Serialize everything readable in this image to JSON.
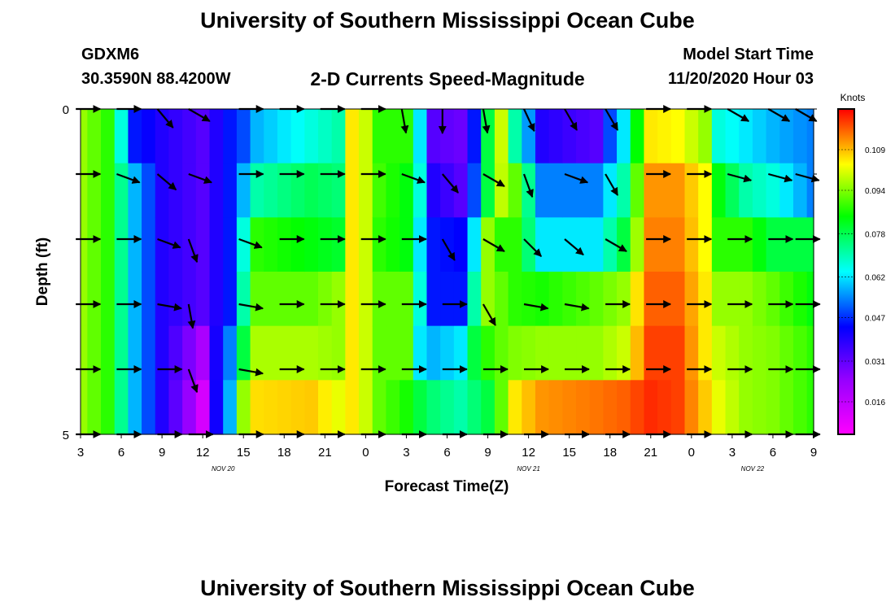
{
  "header": {
    "title": "University of Southern Mississippi Ocean Cube",
    "station": "GDXM6",
    "coordinates": "30.3590N 88.4200W",
    "subtitle": "2-D Currents Speed-Magnitude",
    "model_start_label": "Model Start Time",
    "model_start_value": "11/20/2020 Hour 03"
  },
  "footer": {
    "title": "University of Southern Mississippi Ocean Cube"
  },
  "chart_data": {
    "type": "heatmap",
    "title": "2-D Currents Speed-Magnitude",
    "xlabel": "Forecast Time(Z)",
    "ylabel": "Depth (ft)",
    "x_ticks": [
      "3",
      "6",
      "9",
      "12",
      "15",
      "18",
      "21",
      "0",
      "3",
      "6",
      "9",
      "12",
      "15",
      "18",
      "21",
      "0",
      "3",
      "6",
      "9"
    ],
    "x_range_hours": [
      3,
      57
    ],
    "day_labels": [
      {
        "label": "NOV  20",
        "hour": 13.5
      },
      {
        "label": "NOV  21",
        "hour": 36
      },
      {
        "label": "NOV  22",
        "hour": 52.5
      }
    ],
    "y_ticks": [
      "0",
      "",
      "",
      "",
      "",
      "5"
    ],
    "y_range": [
      0,
      5
    ],
    "colorbar": {
      "title": "Knots",
      "range": [
        0.004,
        0.124
      ],
      "labels": [
        "0.109",
        "0.094",
        "0.078",
        "0.062",
        "0.047",
        "0.031",
        "0.016"
      ],
      "label_values": [
        0.109,
        0.094,
        0.078,
        0.062,
        0.047,
        0.031,
        0.016
      ]
    },
    "hours": [
      3,
      4,
      5,
      6,
      7,
      8,
      9,
      10,
      11,
      12,
      13,
      14,
      15,
      16,
      17,
      18,
      19,
      20,
      21,
      22,
      23,
      24,
      25,
      26,
      27,
      28,
      29,
      30,
      31,
      32,
      33,
      34,
      35,
      36,
      37,
      38,
      39,
      40,
      41,
      42,
      43,
      44,
      45,
      46,
      47,
      48,
      49,
      50,
      51,
      52,
      53,
      54,
      55,
      56,
      57
    ],
    "depths": [
      0,
      1,
      2,
      3,
      4,
      5
    ],
    "speed_keyframes": [
      {
        "hour": 3,
        "values": [
          0.09,
          0.09,
          0.09,
          0.09,
          0.09,
          0.09
        ]
      },
      {
        "hour": 5,
        "values": [
          0.08,
          0.08,
          0.08,
          0.08,
          0.08,
          0.08
        ]
      },
      {
        "hour": 7,
        "values": [
          0.03,
          0.045,
          0.045,
          0.045,
          0.045,
          0.045
        ]
      },
      {
        "hour": 9,
        "values": [
          0.025,
          0.025,
          0.025,
          0.025,
          0.025,
          0.025
        ]
      },
      {
        "hour": 12,
        "values": [
          0.02,
          0.02,
          0.02,
          0.02,
          0.012,
          0.008
        ]
      },
      {
        "hour": 14,
        "values": [
          0.03,
          0.03,
          0.03,
          0.03,
          0.04,
          0.045
        ]
      },
      {
        "hour": 15,
        "values": [
          0.035,
          0.045,
          0.055,
          0.06,
          0.07,
          0.09
        ]
      },
      {
        "hour": 16,
        "values": [
          0.045,
          0.06,
          0.08,
          0.085,
          0.092,
          0.103
        ]
      },
      {
        "hour": 20,
        "values": [
          0.055,
          0.068,
          0.075,
          0.085,
          0.092,
          0.105
        ]
      },
      {
        "hour": 22,
        "values": [
          0.06,
          0.065,
          0.072,
          0.09,
          0.09,
          0.098
        ]
      },
      {
        "hour": 23,
        "values": [
          0.102,
          0.102,
          0.102,
          0.102,
          0.102,
          0.102
        ]
      },
      {
        "hour": 24,
        "values": [
          0.095,
          0.095,
          0.095,
          0.095,
          0.095,
          0.095
        ]
      },
      {
        "hour": 25,
        "values": [
          0.08,
          0.082,
          0.08,
          0.085,
          0.085,
          0.085
        ]
      },
      {
        "hour": 27,
        "values": [
          0.08,
          0.075,
          0.075,
          0.085,
          0.085,
          0.078
        ]
      },
      {
        "hour": 28,
        "values": [
          0.05,
          0.055,
          0.05,
          0.055,
          0.05,
          0.07
        ]
      },
      {
        "hour": 29,
        "values": [
          0.02,
          0.025,
          0.03,
          0.03,
          0.045,
          0.065
        ]
      },
      {
        "hour": 31,
        "values": [
          0.018,
          0.02,
          0.028,
          0.03,
          0.05,
          0.06
        ]
      },
      {
        "hour": 32,
        "values": [
          0.03,
          0.035,
          0.05,
          0.06,
          0.07,
          0.065
        ]
      },
      {
        "hour": 33,
        "values": [
          0.07,
          0.07,
          0.09,
          0.09,
          0.08,
          0.07
        ]
      },
      {
        "hour": 34,
        "values": [
          0.095,
          0.094,
          0.08,
          0.085,
          0.085,
          0.085
        ]
      },
      {
        "hour": 35,
        "values": [
          0.06,
          0.085,
          0.08,
          0.08,
          0.088,
          0.102
        ]
      },
      {
        "hour": 37,
        "values": [
          0.025,
          0.04,
          0.05,
          0.078,
          0.09,
          0.11
        ]
      },
      {
        "hour": 41,
        "values": [
          0.02,
          0.04,
          0.05,
          0.085,
          0.09,
          0.113
        ]
      },
      {
        "hour": 43,
        "values": [
          0.05,
          0.06,
          0.07,
          0.09,
          0.095,
          0.115
        ]
      },
      {
        "hour": 45,
        "values": [
          0.102,
          0.11,
          0.112,
          0.115,
          0.118,
          0.12
        ]
      },
      {
        "hour": 47,
        "values": [
          0.1,
          0.11,
          0.112,
          0.115,
          0.118,
          0.118
        ]
      },
      {
        "hour": 49,
        "values": [
          0.09,
          0.1,
          0.1,
          0.102,
          0.102,
          0.105
        ]
      },
      {
        "hour": 50,
        "values": [
          0.055,
          0.075,
          0.08,
          0.09,
          0.095,
          0.098
        ]
      },
      {
        "hour": 52,
        "values": [
          0.05,
          0.06,
          0.08,
          0.09,
          0.09,
          0.09
        ]
      },
      {
        "hour": 54,
        "values": [
          0.045,
          0.055,
          0.07,
          0.085,
          0.088,
          0.088
        ]
      },
      {
        "hour": 57,
        "values": [
          0.04,
          0.04,
          0.07,
          0.075,
          0.08,
          0.08
        ]
      }
    ],
    "arrow_hours": [
      3.5,
      6.5,
      9.5,
      11.8,
      15.5,
      18.5,
      21.5,
      24.5,
      27.5,
      30.5,
      33.5,
      36.5,
      39.5,
      42.5,
      45.5,
      48.5,
      51.5,
      54.5,
      56.5
    ],
    "arrow_directions_deg": [
      [
        0,
        0,
        50,
        30,
        0,
        0,
        0,
        0,
        80,
        90,
        80,
        65,
        60,
        60,
        0,
        0,
        30,
        30,
        30
      ],
      [
        0,
        20,
        40,
        20,
        0,
        0,
        0,
        0,
        20,
        50,
        30,
        70,
        20,
        60,
        0,
        0,
        15,
        15,
        15
      ],
      [
        0,
        0,
        20,
        70,
        20,
        0,
        0,
        0,
        0,
        60,
        30,
        45,
        40,
        30,
        0,
        0,
        0,
        0,
        0
      ],
      [
        0,
        0,
        10,
        80,
        10,
        0,
        0,
        0,
        0,
        0,
        60,
        10,
        10,
        0,
        0,
        0,
        0,
        0,
        0
      ],
      [
        0,
        0,
        0,
        70,
        10,
        0,
        0,
        0,
        0,
        0,
        0,
        0,
        0,
        0,
        0,
        0,
        0,
        0,
        0
      ],
      [
        0,
        0,
        0,
        0,
        0,
        0,
        0,
        0,
        0,
        0,
        0,
        0,
        0,
        0,
        0,
        0,
        0,
        0,
        0
      ]
    ]
  }
}
